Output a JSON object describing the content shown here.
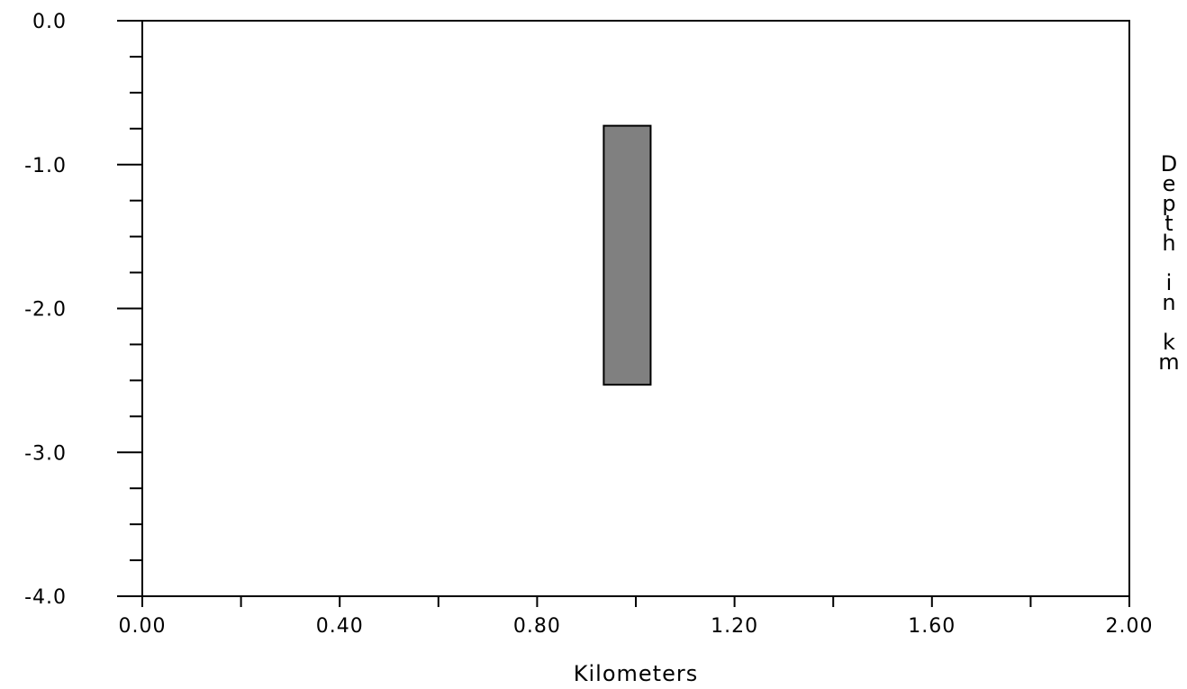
{
  "chart_data": {
    "type": "depth_section",
    "xlabel": "Kilometers",
    "ylabel": "Depth in km",
    "xlim": [
      0.0,
      2.0
    ],
    "ylim": [
      -4.0,
      0.0
    ],
    "x_tick_labels": [
      "0.00",
      "0.40",
      "0.80",
      "1.20",
      "1.60",
      "2.00"
    ],
    "x_tick_values": [
      0.0,
      0.4,
      0.8,
      1.2,
      1.6,
      2.0
    ],
    "x_minor_step": 0.2,
    "y_tick_labels": [
      "0.0",
      "-1.0",
      "-2.0",
      "-3.0",
      "-4.0"
    ],
    "y_tick_values": [
      0.0,
      -1.0,
      -2.0,
      -3.0,
      -4.0
    ],
    "y_minor_step": 0.25,
    "grid": false,
    "bodies": [
      {
        "x_min": 0.935,
        "x_max": 1.03,
        "y_top": -0.73,
        "y_bottom": -2.53,
        "fill": "#808080"
      }
    ]
  }
}
